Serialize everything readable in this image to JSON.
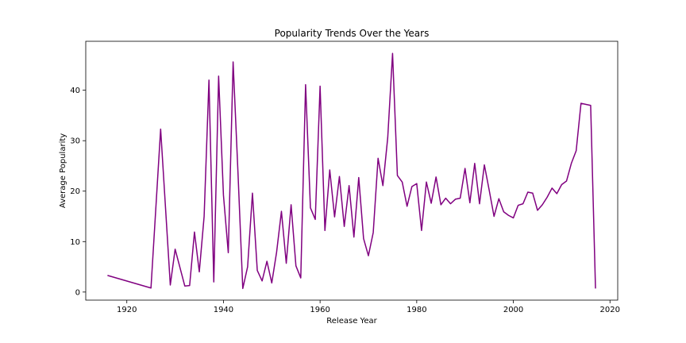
{
  "chart_data": {
    "type": "line",
    "title": "Popularity Trends Over the Years",
    "xlabel": "Release Year",
    "ylabel": "Average Popularity",
    "xlim": [
      1911.5,
      2021.6
    ],
    "ylim": [
      -1.6,
      49.7
    ],
    "xticks": [
      1920,
      1940,
      1960,
      1980,
      2000,
      2020
    ],
    "yticks": [
      0,
      10,
      20,
      30,
      40
    ],
    "grid": false,
    "line_color": "#800080",
    "series": [
      {
        "x": [
          1916,
          1925,
          1927,
          1929,
          1930,
          1932,
          1933,
          1934,
          1935,
          1936,
          1937,
          1938,
          1939,
          1940,
          1941,
          1942,
          1943,
          1944,
          1945,
          1946,
          1947,
          1948,
          1949,
          1950,
          1951,
          1952,
          1953,
          1954,
          1955,
          1956,
          1957,
          1958,
          1959,
          1960,
          1961,
          1962,
          1963,
          1964,
          1965,
          1966,
          1967,
          1968,
          1969,
          1970,
          1971,
          1972,
          1973,
          1974,
          1975,
          1976,
          1977,
          1978,
          1979,
          1980,
          1981,
          1982,
          1983,
          1984,
          1985,
          1986,
          1987,
          1988,
          1989,
          1990,
          1991,
          1992,
          1993,
          1994,
          1995,
          1996,
          1997,
          1998,
          1999,
          2000,
          2001,
          2002,
          2003,
          2004,
          2005,
          2006,
          2007,
          2008,
          2009,
          2010,
          2011,
          2012,
          2013,
          2014,
          2016,
          2017
        ],
        "y": [
          3.3,
          0.8,
          32.3,
          1.4,
          8.5,
          1.2,
          1.3,
          11.9,
          4.0,
          15.0,
          42.0,
          2.0,
          42.8,
          19.2,
          7.8,
          45.6,
          23.8,
          0.7,
          5.0,
          19.6,
          4.3,
          2.2,
          6.1,
          1.8,
          7.9,
          16.0,
          5.7,
          17.3,
          5.2,
          2.8,
          41.1,
          16.7,
          14.4,
          40.8,
          12.2,
          24.2,
          14.9,
          22.9,
          13.0,
          21.1,
          10.9,
          22.7,
          10.6,
          7.2,
          11.8,
          26.5,
          21.1,
          30.6,
          47.3,
          23.1,
          21.8,
          17.0,
          20.9,
          21.5,
          12.2,
          21.8,
          17.6,
          22.8,
          17.3,
          18.6,
          17.5,
          18.4,
          18.6,
          24.5,
          17.7,
          25.5,
          17.5,
          25.2,
          20.2,
          15.0,
          18.5,
          15.9,
          15.2,
          14.7,
          17.2,
          17.5,
          19.8,
          19.6,
          16.2,
          17.3,
          18.8,
          20.6,
          19.5,
          21.3,
          22.0,
          25.5,
          28.0,
          37.4,
          37.0,
          0.7
        ]
      }
    ]
  }
}
